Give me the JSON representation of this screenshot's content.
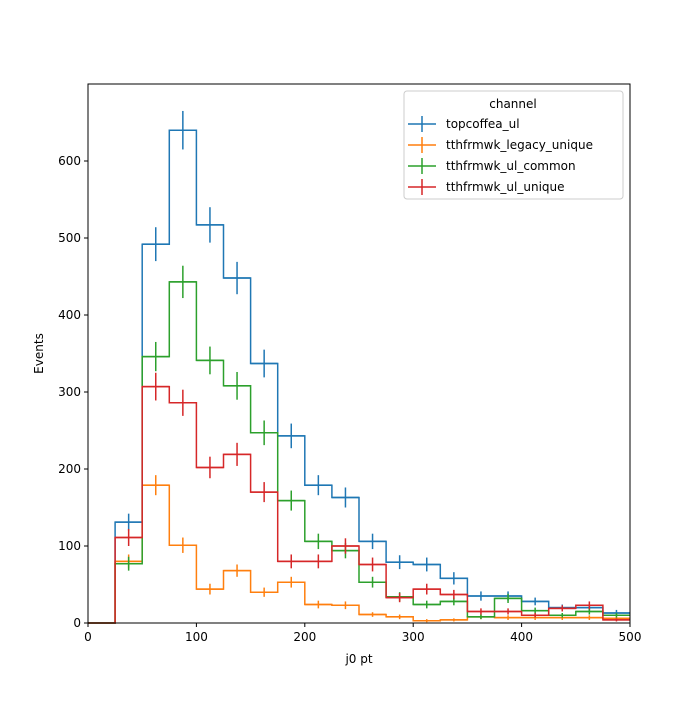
{
  "chart_data": {
    "type": "line",
    "drawstyle": "steps-post",
    "xlabel": "j0 pt",
    "ylabel": "Events",
    "xlim": [
      0,
      500
    ],
    "ylim": [
      0,
      700
    ],
    "xticks": [
      "0",
      "100",
      "200",
      "300",
      "400",
      "500"
    ],
    "yticks": [
      "0",
      "100",
      "200",
      "300",
      "400",
      "500",
      "600"
    ],
    "grid": false,
    "legend": {
      "title": "channel",
      "placement": "top-right"
    },
    "bin_edges": [
      0,
      25,
      50,
      75,
      100,
      125,
      150,
      175,
      200,
      225,
      250,
      275,
      300,
      325,
      350,
      375,
      400,
      425,
      450,
      475,
      500
    ],
    "series": [
      {
        "name": "topcoffea_ul",
        "color": "#1f77b4",
        "values": [
          0,
          131,
          492,
          640,
          517,
          448,
          337,
          243,
          179,
          163,
          106,
          79,
          76,
          58,
          35,
          35,
          28,
          20,
          20,
          13
        ],
        "errors": [
          0,
          11,
          22,
          25,
          23,
          21,
          18,
          16,
          13,
          13,
          10,
          9,
          9,
          8,
          6,
          6,
          5,
          4,
          4,
          4
        ]
      },
      {
        "name": "tthfrmwk_legacy_unique",
        "color": "#ff7f0e",
        "values": [
          0,
          80,
          179,
          101,
          44,
          68,
          40,
          53,
          24,
          23,
          11,
          8,
          3,
          4,
          8,
          7,
          7,
          7,
          7,
          6
        ],
        "errors": [
          0,
          9,
          13,
          10,
          7,
          8,
          6,
          7,
          5,
          5,
          3,
          3,
          2,
          2,
          3,
          3,
          3,
          3,
          3,
          2
        ]
      },
      {
        "name": "tthfrmwk_ul_common",
        "color": "#2ca02c",
        "values": [
          0,
          77,
          346,
          443,
          341,
          308,
          247,
          159,
          106,
          94,
          53,
          34,
          24,
          28,
          8,
          32,
          16,
          10,
          15,
          10
        ],
        "errors": [
          0,
          9,
          19,
          21,
          18,
          18,
          16,
          13,
          10,
          10,
          7,
          6,
          5,
          5,
          3,
          6,
          4,
          3,
          4,
          3
        ]
      },
      {
        "name": "tthfrmwk_ul_unique",
        "color": "#d62728",
        "values": [
          0,
          111,
          307,
          286,
          202,
          219,
          170,
          80,
          80,
          100,
          76,
          33,
          44,
          37,
          15,
          15,
          10,
          19,
          23,
          4
        ],
        "errors": [
          0,
          11,
          18,
          17,
          14,
          15,
          13,
          9,
          9,
          10,
          9,
          6,
          7,
          6,
          4,
          4,
          3,
          4,
          5,
          2
        ]
      }
    ]
  }
}
